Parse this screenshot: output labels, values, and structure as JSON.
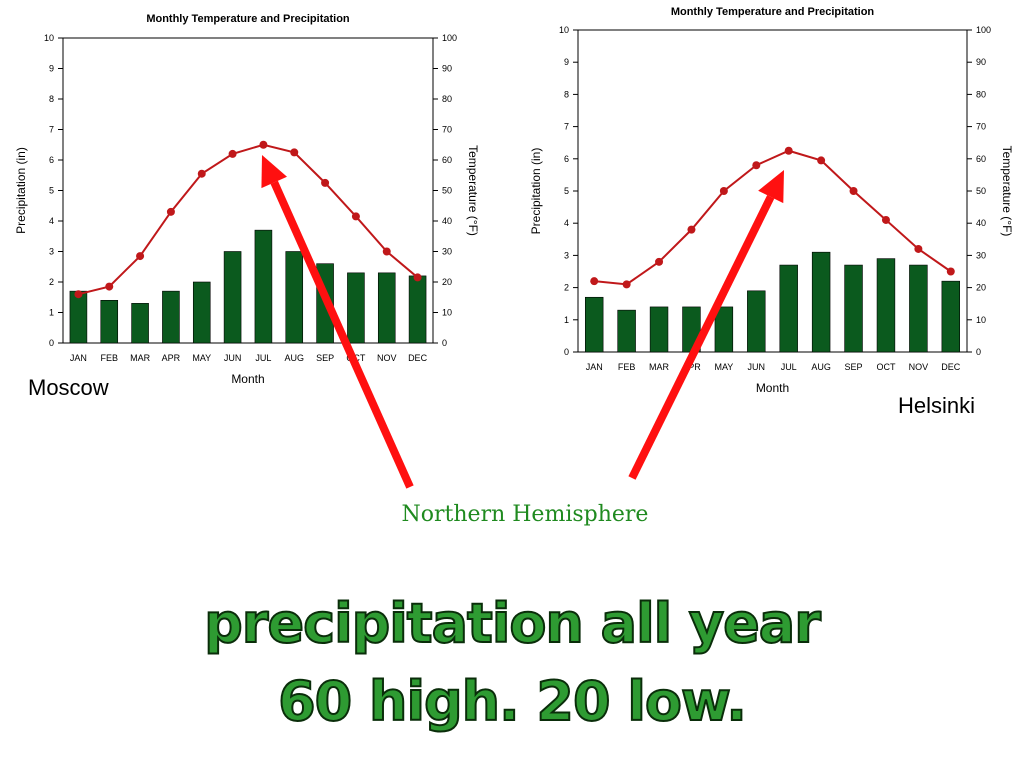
{
  "labels": {
    "moscow": "Moscow",
    "helsinki": "Helsinki",
    "hemisphere": "Northern Hemisphere",
    "line1": "precipitation all year",
    "line2": "60 high.  20 low."
  },
  "colors": {
    "bar": "#0b5a1e",
    "line": "#c0181a",
    "arrow": "#ff1010",
    "text_green": "#1f8a1f",
    "headline_fill": "#2e9b32"
  },
  "chart_data": [
    {
      "type": "bar",
      "title": "Monthly Temperature and Precipitation",
      "city": "Moscow",
      "categories": [
        "JAN",
        "FEB",
        "MAR",
        "APR",
        "MAY",
        "JUN",
        "JUL",
        "AUG",
        "SEP",
        "OCT",
        "NOV",
        "DEC"
      ],
      "xlabel": "Month",
      "ylabel": "Precipitation (in)",
      "ylabel_right": "Temperature (°F)",
      "ylim": [
        0,
        10
      ],
      "ylim_right": [
        0,
        100
      ],
      "yticks": [
        0,
        1,
        2,
        3,
        4,
        5,
        6,
        7,
        8,
        9,
        10
      ],
      "yticks_right": [
        0,
        10,
        20,
        30,
        40,
        50,
        60,
        70,
        80,
        90,
        100
      ],
      "precipitation": [
        1.7,
        1.4,
        1.3,
        1.7,
        2.0,
        3.0,
        3.7,
        3.0,
        2.6,
        2.3,
        2.3,
        2.2
      ],
      "temperature": [
        16,
        18.5,
        28.5,
        43,
        55.5,
        62,
        65,
        62.5,
        52.5,
        41.5,
        30,
        21.5
      ]
    },
    {
      "type": "bar",
      "title": "Monthly Temperature and Precipitation",
      "city": "Helsinki",
      "categories": [
        "JAN",
        "FEB",
        "MAR",
        "APR",
        "MAY",
        "JUN",
        "JUL",
        "AUG",
        "SEP",
        "OCT",
        "NOV",
        "DEC"
      ],
      "xlabel": "Month",
      "ylabel": "Precipitation (in)",
      "ylabel_right": "Temperature (°F)",
      "ylim": [
        0,
        10
      ],
      "ylim_right": [
        0,
        100
      ],
      "yticks": [
        0,
        1,
        2,
        3,
        4,
        5,
        6,
        7,
        8,
        9,
        10
      ],
      "yticks_right": [
        0,
        10,
        20,
        30,
        40,
        50,
        60,
        70,
        80,
        90,
        100
      ],
      "precipitation": [
        1.7,
        1.3,
        1.4,
        1.4,
        1.4,
        1.9,
        2.7,
        3.1,
        2.7,
        2.9,
        2.7,
        2.2
      ],
      "temperature": [
        22,
        21,
        28,
        38,
        50,
        58,
        62.5,
        59.5,
        50,
        41,
        32,
        25
      ]
    }
  ]
}
